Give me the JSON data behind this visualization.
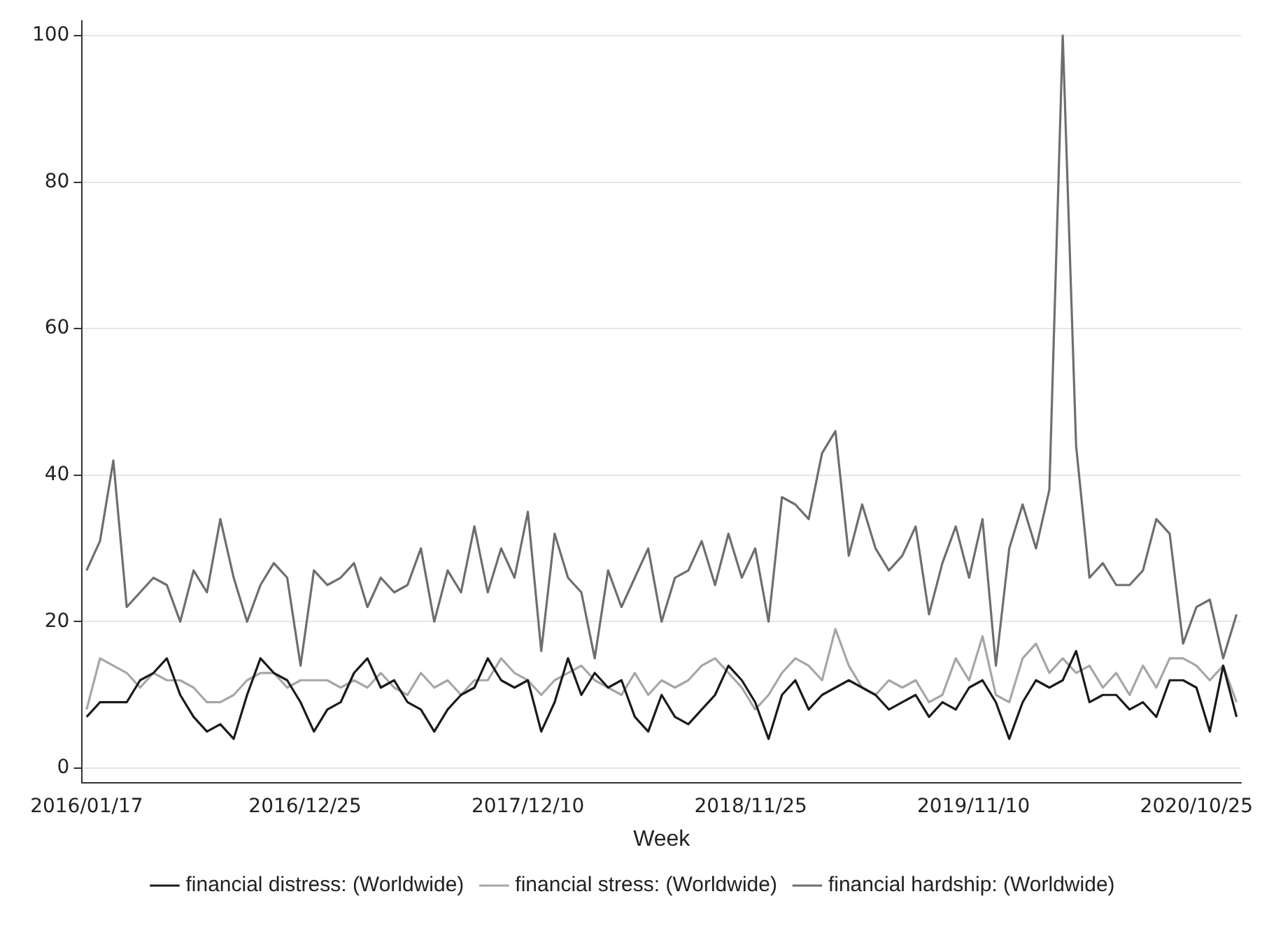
{
  "chart_data": {
    "type": "line",
    "xlabel": "Week",
    "legend": "bottom",
    "grid": "y",
    "marker": "none",
    "line_style": "solid",
    "xlim": [
      "2016-01-10",
      "2021-01-03"
    ],
    "xticks": [
      {
        "value": "2016-01-17",
        "label": "2016/01/17"
      },
      {
        "value": "2016-12-25",
        "label": "2016/12/25"
      },
      {
        "value": "2017-12-10",
        "label": "2017/12/10"
      },
      {
        "value": "2018-11-25",
        "label": "2018/11/25"
      },
      {
        "value": "2019-11-10",
        "label": "2019/11/10"
      },
      {
        "value": "2020-10-25",
        "label": "2020/10/25"
      }
    ],
    "ylim": [
      -2,
      102
    ],
    "yticks": [
      0,
      20,
      40,
      60,
      80,
      100
    ],
    "x": [
      "2016-01-17",
      "2016-02-07",
      "2016-02-28",
      "2016-03-20",
      "2016-04-10",
      "2016-05-01",
      "2016-05-22",
      "2016-06-12",
      "2016-07-03",
      "2016-07-24",
      "2016-08-14",
      "2016-09-04",
      "2016-09-25",
      "2016-10-16",
      "2016-11-06",
      "2016-11-27",
      "2016-12-18",
      "2017-01-08",
      "2017-01-29",
      "2017-02-19",
      "2017-03-12",
      "2017-04-02",
      "2017-04-23",
      "2017-05-14",
      "2017-06-04",
      "2017-06-25",
      "2017-07-16",
      "2017-08-06",
      "2017-08-27",
      "2017-09-17",
      "2017-10-08",
      "2017-10-29",
      "2017-11-19",
      "2017-12-10",
      "2017-12-31",
      "2018-01-21",
      "2018-02-11",
      "2018-03-04",
      "2018-03-25",
      "2018-04-15",
      "2018-05-06",
      "2018-05-27",
      "2018-06-17",
      "2018-07-08",
      "2018-07-29",
      "2018-08-19",
      "2018-09-09",
      "2018-09-30",
      "2018-10-21",
      "2018-11-11",
      "2018-12-02",
      "2018-12-23",
      "2019-01-13",
      "2019-02-03",
      "2019-02-24",
      "2019-03-17",
      "2019-04-07",
      "2019-04-28",
      "2019-05-19",
      "2019-06-09",
      "2019-06-30",
      "2019-07-21",
      "2019-08-11",
      "2019-09-01",
      "2019-09-22",
      "2019-10-13",
      "2019-11-03",
      "2019-11-24",
      "2019-12-15",
      "2020-01-05",
      "2020-01-26",
      "2020-02-16",
      "2020-03-08",
      "2020-03-29",
      "2020-04-19",
      "2020-05-10",
      "2020-05-31",
      "2020-06-21",
      "2020-07-12",
      "2020-08-02",
      "2020-08-23",
      "2020-09-13",
      "2020-10-04",
      "2020-10-25",
      "2020-11-15",
      "2020-12-06",
      "2020-12-27"
    ],
    "series": [
      {
        "name": "financial distress: (Worldwide)",
        "color": "#1a1a1a",
        "values": [
          7,
          9,
          9,
          9,
          12,
          13,
          15,
          10,
          7,
          5,
          6,
          4,
          10,
          15,
          13,
          12,
          9,
          5,
          8,
          9,
          13,
          15,
          11,
          12,
          9,
          8,
          5,
          8,
          10,
          11,
          15,
          12,
          11,
          12,
          5,
          9,
          15,
          10,
          13,
          11,
          12,
          7,
          5,
          10,
          7,
          6,
          8,
          10,
          14,
          12,
          9,
          4,
          10,
          12,
          8,
          10,
          11,
          12,
          11,
          10,
          8,
          9,
          10,
          7,
          9,
          8,
          11,
          12,
          9,
          4,
          9,
          12,
          11,
          12,
          16,
          9,
          10,
          10,
          8,
          9,
          7,
          12,
          12,
          11,
          5,
          14,
          7
        ]
      },
      {
        "name": "financial stress: (Worldwide)",
        "color": "#a6a6a6",
        "values": [
          8,
          15,
          14,
          13,
          11,
          13,
          12,
          12,
          11,
          9,
          9,
          10,
          12,
          13,
          13,
          11,
          12,
          12,
          12,
          11,
          12,
          11,
          13,
          11,
          10,
          13,
          11,
          12,
          10,
          12,
          12,
          15,
          13,
          12,
          10,
          12,
          13,
          14,
          12,
          11,
          10,
          13,
          10,
          12,
          11,
          12,
          14,
          15,
          13,
          11,
          8,
          10,
          13,
          15,
          14,
          12,
          19,
          14,
          11,
          10,
          12,
          11,
          12,
          9,
          10,
          15,
          12,
          18,
          10,
          9,
          15,
          17,
          13,
          15,
          13,
          14,
          11,
          13,
          10,
          14,
          11,
          15,
          15,
          14,
          12,
          14,
          9
        ]
      },
      {
        "name": "financial hardship: (Worldwide)",
        "color": "#6e6e6e",
        "values": [
          27,
          31,
          42,
          22,
          24,
          26,
          25,
          20,
          27,
          24,
          34,
          26,
          20,
          25,
          28,
          26,
          14,
          27,
          25,
          26,
          28,
          22,
          26,
          24,
          25,
          30,
          20,
          27,
          24,
          33,
          24,
          30,
          26,
          35,
          16,
          32,
          26,
          24,
          15,
          27,
          22,
          26,
          30,
          20,
          26,
          27,
          31,
          25,
          32,
          26,
          30,
          20,
          37,
          36,
          34,
          43,
          46,
          29,
          36,
          30,
          27,
          29,
          33,
          21,
          28,
          33,
          26,
          34,
          14,
          30,
          36,
          30,
          38,
          100,
          44,
          26,
          28,
          25,
          25,
          27,
          34,
          32,
          17,
          22,
          23,
          15,
          21
        ]
      }
    ]
  }
}
